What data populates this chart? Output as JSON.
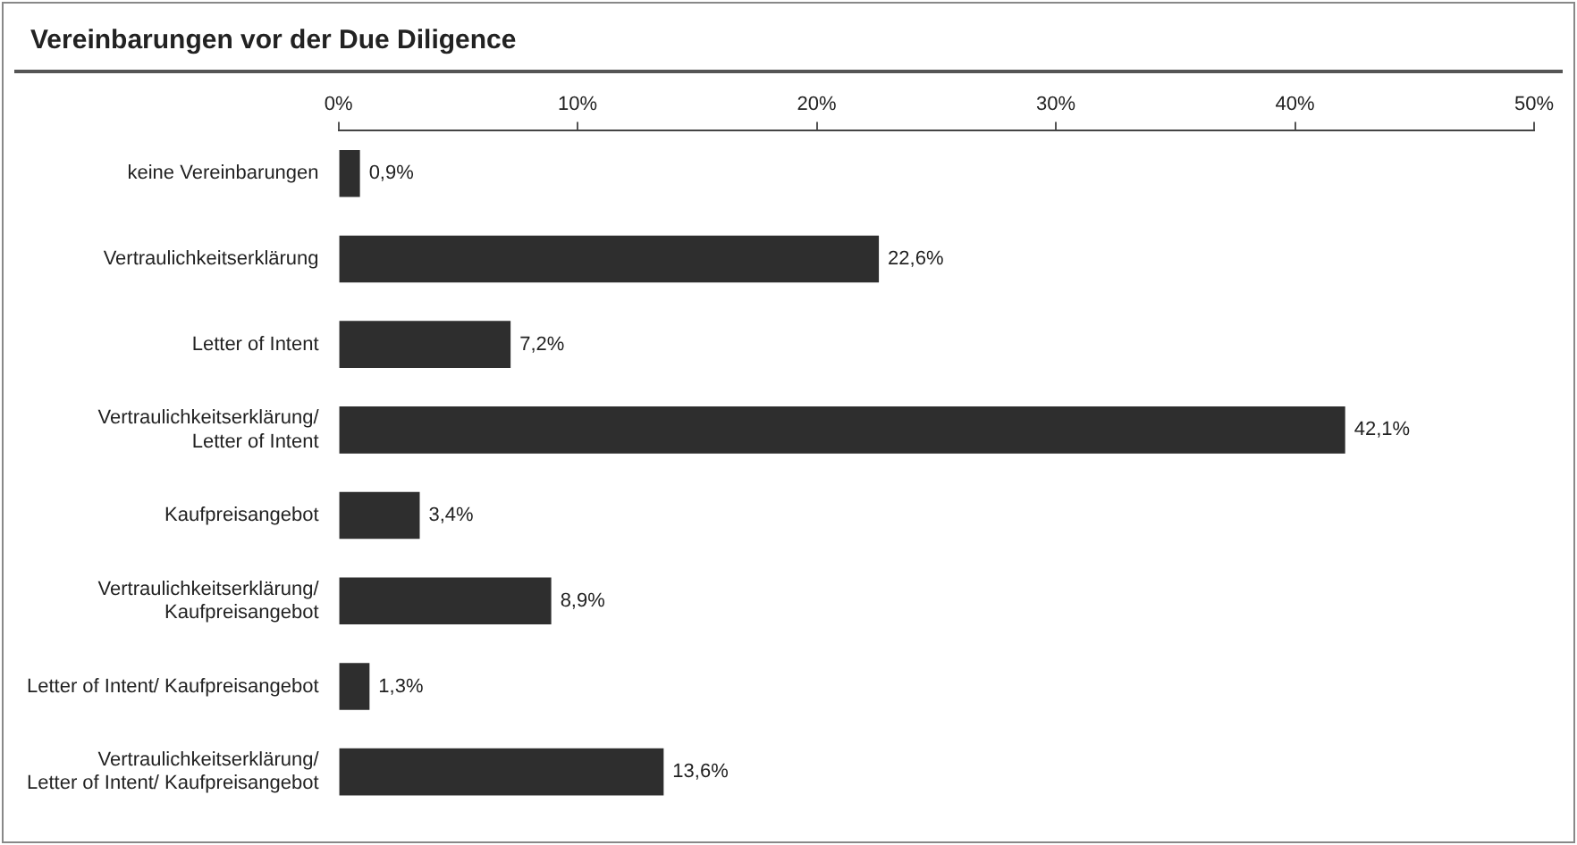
{
  "chart_data": {
    "type": "bar",
    "orientation": "horizontal",
    "title": "Vereinbarungen vor der Due Diligence",
    "categories": [
      "keine Vereinbarungen",
      "Vertraulichkeitserklärung",
      "Letter of Intent",
      "Vertraulichkeitserklärung/\nLetter of Intent",
      "Kaufpreisangebot",
      "Vertraulichkeitserklärung/\nKaufpreisangebot",
      "Letter of Intent/ Kaufpreisangebot",
      "Vertraulichkeitserklärung/\nLetter of Intent/ Kaufpreisangebot"
    ],
    "values": [
      0.9,
      22.6,
      7.2,
      42.1,
      3.4,
      8.9,
      1.3,
      13.6
    ],
    "value_labels": [
      "0,9%",
      "22,6%",
      "7,2%",
      "42,1%",
      "3,4%",
      "8,9%",
      "1,3%",
      "13,6%"
    ],
    "color": "#2e2e2e",
    "xlim": [
      0,
      50
    ],
    "xticks": [
      {
        "value": 0,
        "label": "0%"
      },
      {
        "value": 10,
        "label": "10%"
      },
      {
        "value": 20,
        "label": "20%"
      },
      {
        "value": 30,
        "label": "30%"
      },
      {
        "value": 40,
        "label": "40%"
      },
      {
        "value": 50,
        "label": "50%"
      }
    ],
    "grid": false,
    "legend": false
  }
}
